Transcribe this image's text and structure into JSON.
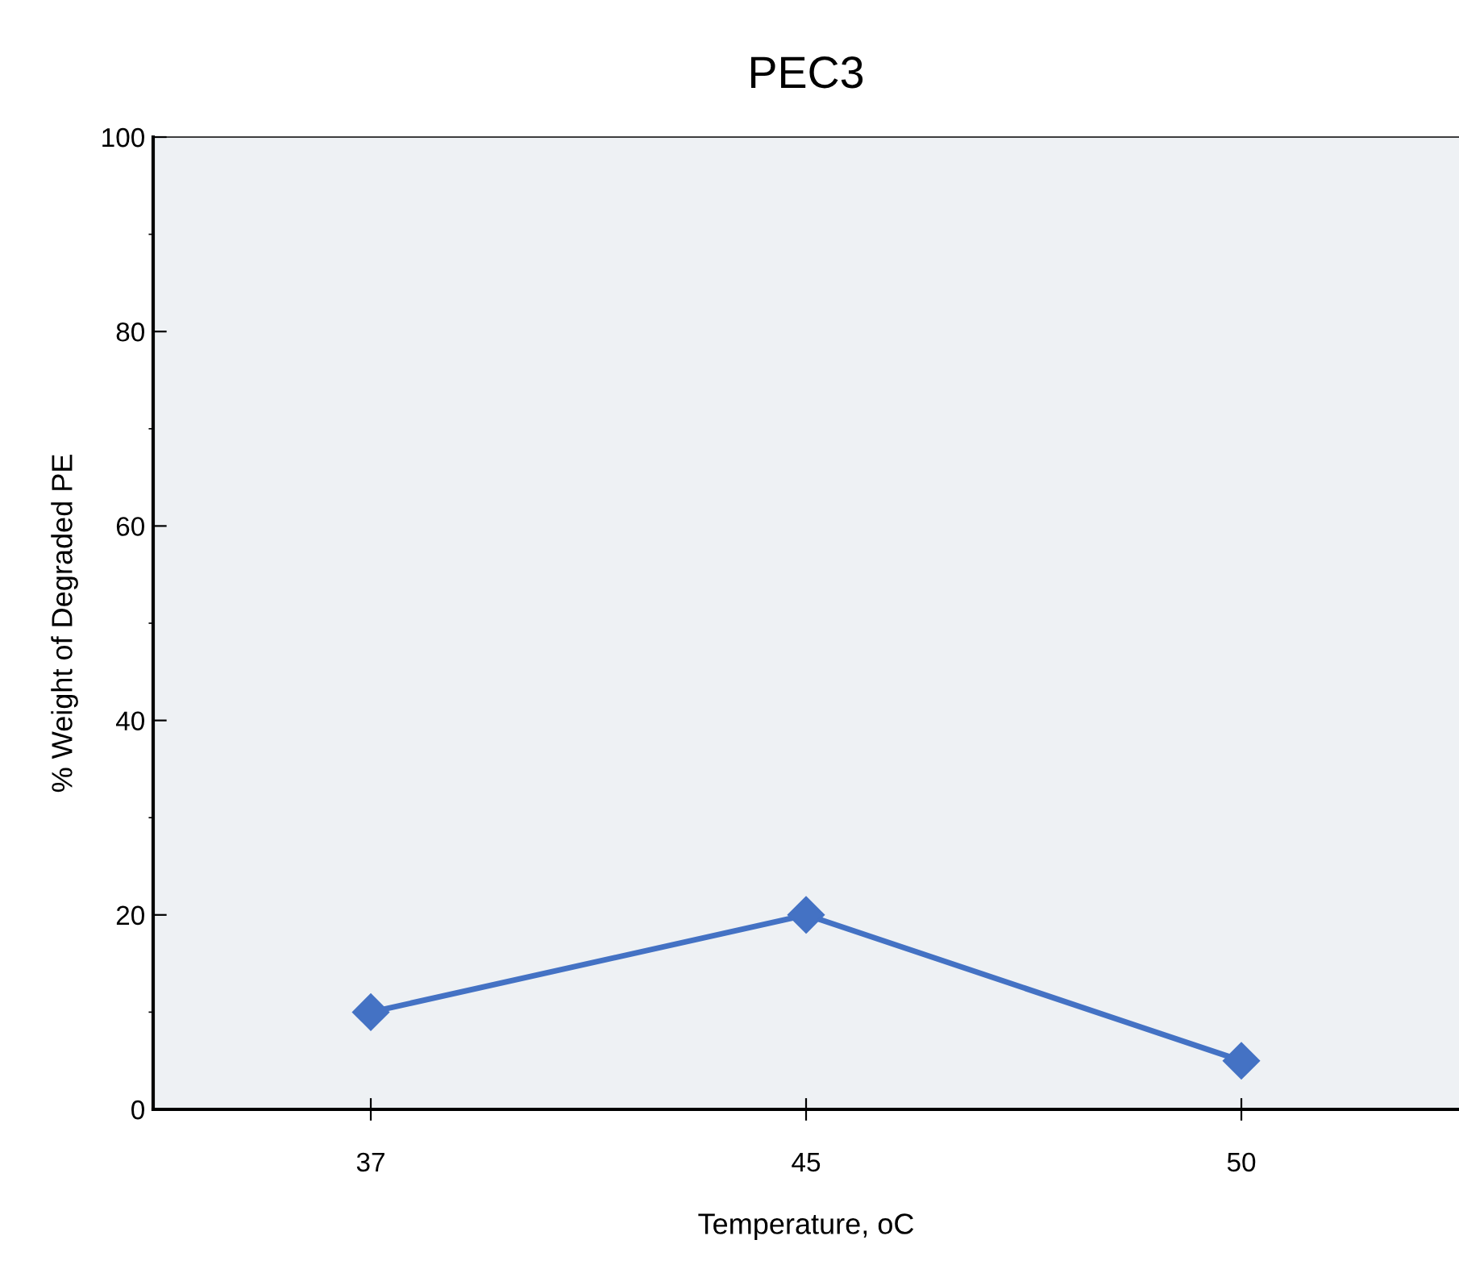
{
  "chart_data": {
    "type": "line",
    "title": "PEC3",
    "xlabel": "Temperature, oC",
    "ylabel": "% Weight of Degraded PE",
    "categories": [
      "37",
      "45",
      "50"
    ],
    "series": [
      {
        "color": "#4472c4",
        "values": [
          10,
          20,
          5
        ]
      }
    ],
    "ylim": [
      0,
      100
    ],
    "yticks": [
      0,
      20,
      40,
      60,
      80,
      100
    ],
    "grid": false,
    "marker": "diamond",
    "line_style": "solid"
  }
}
